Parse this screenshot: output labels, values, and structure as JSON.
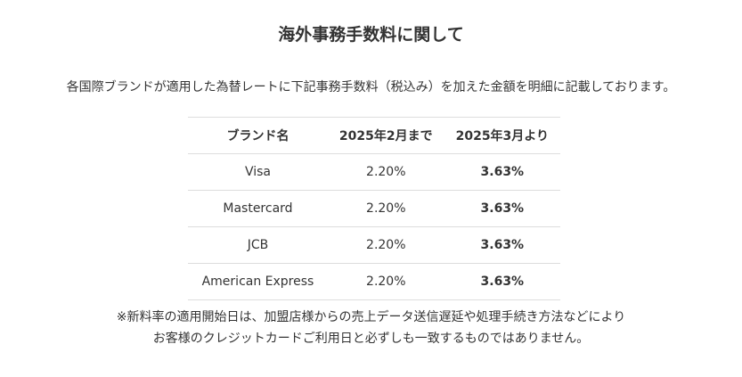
{
  "title": "海外事務手数料に関して",
  "intro": "各国際ブランドが適用した為替レートに下記事務手数料（税込み）を加えた金額を明細に記載しております。",
  "table": {
    "header": [
      "ブランド名",
      "2025年2月まで",
      "2025年3月より"
    ],
    "rows": [
      [
        "Visa",
        "2.20%",
        "3.63%"
      ],
      [
        "Mastercard",
        "2.20%",
        "3.63%"
      ],
      [
        "JCB",
        "2.20%",
        "3.63%"
      ],
      [
        "American Express",
        "2.20%",
        "3.63%"
      ]
    ]
  },
  "notes": [
    "※新料率の適用開始日は、加盟店様からの売上データ送信遅延や処理手続き方法などにより",
    "お客様のクレジットカードご利用日と必ずしも一致するものではありません。"
  ]
}
